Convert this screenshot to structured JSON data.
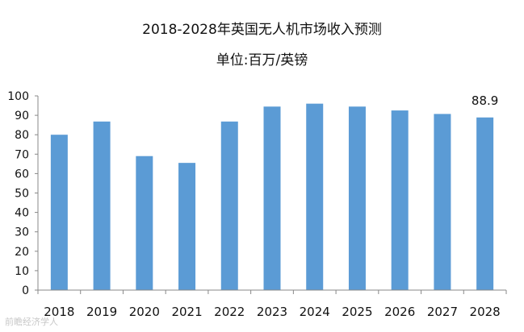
{
  "chart_data": {
    "type": "bar",
    "title": "2018-2028年英国无人机市场收入预测",
    "subtitle": "单位:百万/英镑",
    "categories": [
      "2018",
      "2019",
      "2020",
      "2021",
      "2022",
      "2023",
      "2024",
      "2025",
      "2026",
      "2027",
      "2028"
    ],
    "values": [
      80.0,
      86.8,
      69.0,
      65.5,
      86.8,
      94.5,
      96.0,
      94.5,
      92.5,
      90.7,
      88.9
    ],
    "data_labels": [
      {
        "index": 10,
        "text": "88.9"
      }
    ],
    "ylim": [
      0,
      100
    ],
    "yticks": [
      0,
      10,
      20,
      30,
      40,
      50,
      60,
      70,
      80,
      90,
      100
    ],
    "xlabel": "",
    "ylabel": "",
    "grid": false,
    "bar_color": "#5b9bd5",
    "axis_color": "#888888"
  },
  "watermark": "前瞻经济学人"
}
